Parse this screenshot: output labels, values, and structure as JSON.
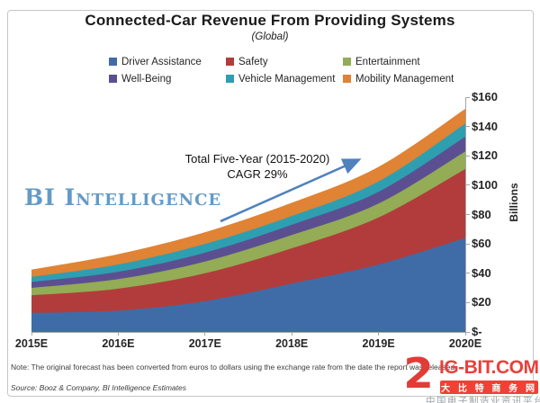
{
  "header": {
    "title": "Connected-Car Revenue From Providing Systems",
    "subtitle": "(Global)"
  },
  "watermark": "BI Intelligence",
  "annotation": {
    "line1": "Total Five-Year (2015-2020)",
    "line2": "CAGR 29%",
    "arrow_color": "#4F81BD"
  },
  "chart_data": {
    "type": "area",
    "stacked": true,
    "title": "Connected-Car Revenue From Providing Systems",
    "subtitle": "(Global)",
    "categories": [
      "2015E",
      "2016E",
      "2017E",
      "2018E",
      "2019E",
      "2020E"
    ],
    "series": [
      {
        "name": "Driver Assistance",
        "color": "#3F6CA6",
        "values": [
          13,
          14.5,
          21,
          33,
          46,
          64
        ]
      },
      {
        "name": "Safety",
        "color": "#B23C3C",
        "values": [
          12,
          15,
          19,
          24,
          32,
          47
        ]
      },
      {
        "name": "Entertainment",
        "color": "#93AC55",
        "values": [
          5,
          6.5,
          8,
          9,
          9.5,
          12
        ]
      },
      {
        "name": "Well-Being",
        "color": "#5C4F91",
        "values": [
          4,
          5,
          6,
          7,
          8,
          10
        ]
      },
      {
        "name": "Vehicle Management",
        "color": "#2E9FB0",
        "values": [
          3.5,
          5,
          6,
          6,
          7,
          9
        ]
      },
      {
        "name": "Mobility Management",
        "color": "#E08334",
        "values": [
          5,
          7,
          8,
          9,
          10,
          10
        ]
      }
    ],
    "xlabel": "",
    "ylabel": "Billions",
    "ylim": [
      0,
      160
    ],
    "y_ticks": {
      "values": [
        0,
        20,
        40,
        60,
        80,
        100,
        120,
        140,
        160
      ],
      "labels": [
        "$-",
        "$20",
        "$40",
        "$60",
        "$80",
        "$100",
        "$120",
        "$140",
        "$160"
      ]
    },
    "grid": false,
    "legend_position": "top"
  },
  "footer": {
    "note": "Note: The original forecast has been converted from euros to dollars using the exchange rate from the date the report was released.",
    "source": "Source: Booz & Company, BI Intelligence Estimates"
  },
  "logo": {
    "icon_text": "2",
    "site": "IG-BIT.COM",
    "badge": "大 比 特 商 务 网",
    "tagline": "中国电子制造业资讯平台",
    "accent_color": "#ef4136"
  }
}
